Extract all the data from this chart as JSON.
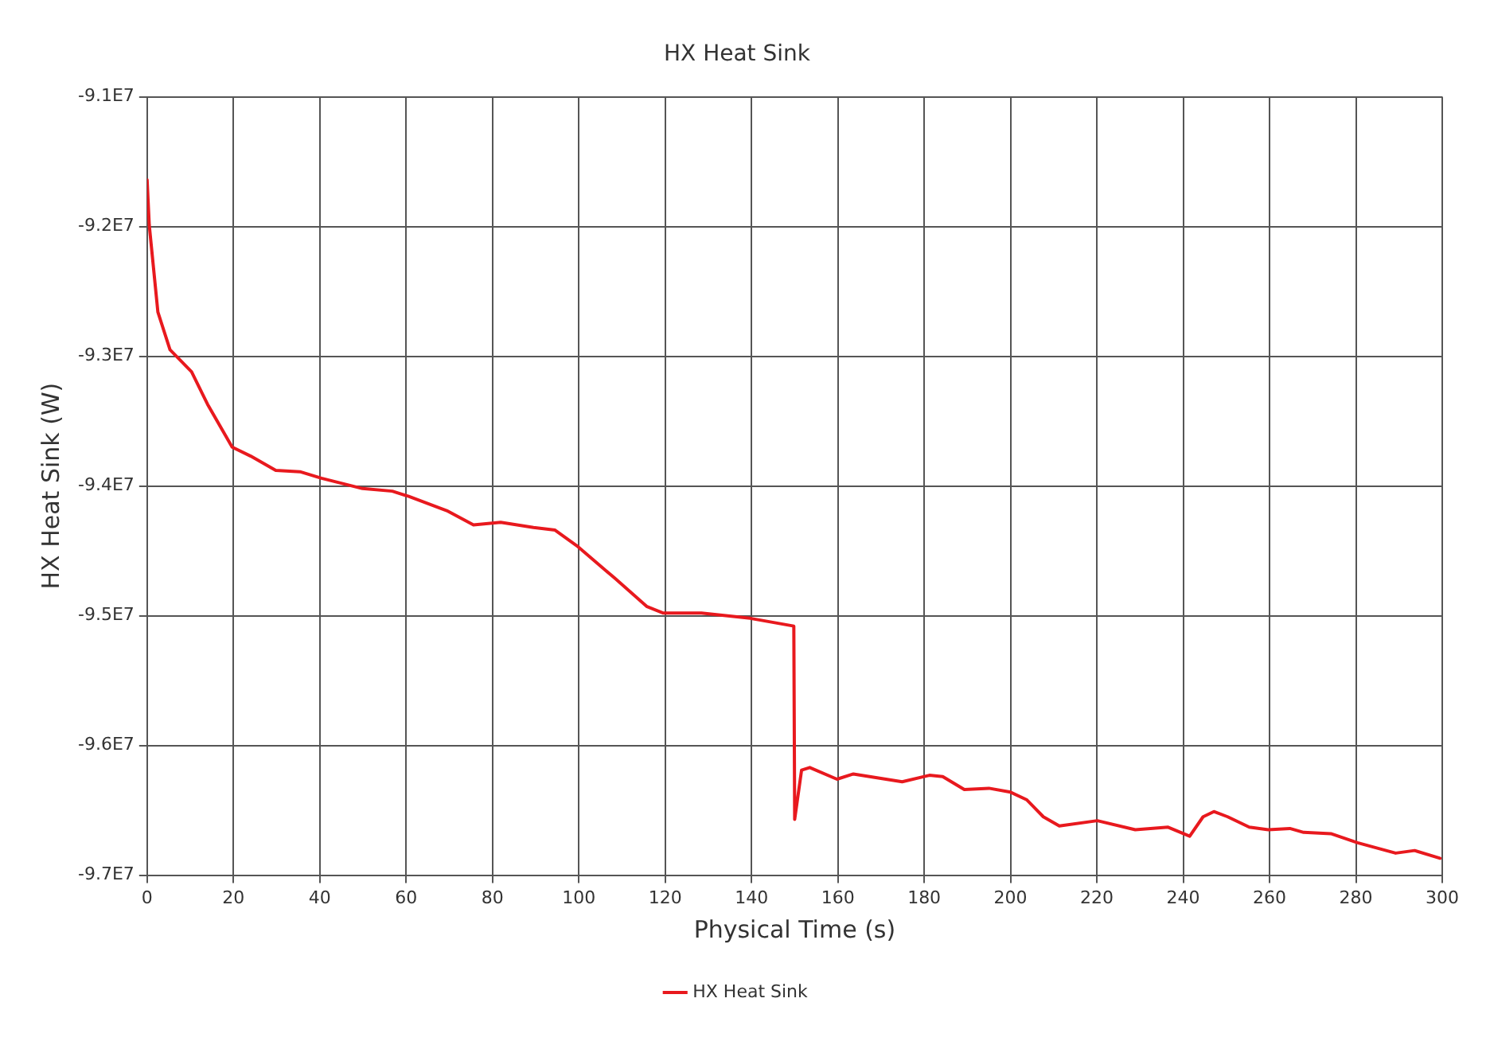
{
  "chart_data": {
    "type": "line",
    "title": "HX Heat Sink",
    "xlabel": "Physical Time (s)",
    "ylabel": "HX Heat Sink (W)",
    "xlim": [
      0,
      300
    ],
    "xticks": [
      0,
      20,
      40,
      60,
      80,
      100,
      120,
      140,
      160,
      180,
      200,
      220,
      240,
      260,
      280,
      300
    ],
    "ylim": [
      -97000000,
      -91000000
    ],
    "yticks": [
      {
        "value": -97000000,
        "label": "-9.7E7"
      },
      {
        "value": -96000000,
        "label": "-9.6E7"
      },
      {
        "value": -95000000,
        "label": "-9.5E7"
      },
      {
        "value": -94000000,
        "label": "-9.4E7"
      },
      {
        "value": -93000000,
        "label": "-9.3E7"
      },
      {
        "value": -92000000,
        "label": "-9.2E7"
      },
      {
        "value": -91000000,
        "label": "-9.1E7"
      }
    ],
    "grid": true,
    "legend": "bottom",
    "marker": "none",
    "line_style": "solid",
    "series": [
      {
        "name": "HX Heat Sink",
        "color": "#e8191e",
        "x": [
          0,
          0.5,
          2.5,
          5.3,
          10.3,
          14,
          19.7,
          24,
          29.8,
          35.4,
          40.4,
          49.9,
          56.8,
          60.6,
          69.4,
          75.6,
          81.9,
          89.5,
          94.5,
          99.5,
          108.3,
          115.8,
          119.6,
          128.4,
          139.7,
          149.8,
          150,
          151.6,
          153.5,
          159.8,
          163.6,
          174.9,
          181.2,
          184.3,
          189.3,
          195,
          200,
          203.8,
          207.6,
          211.3,
          220.1,
          228.9,
          236.5,
          241.5,
          244.6,
          247.1,
          250.3,
          255.3,
          259.7,
          264.7,
          267.9,
          274.2,
          280.4,
          289.2,
          293.6,
          299.5
        ],
        "values": [
          -91640000,
          -91990000,
          -92660000,
          -92950000,
          -93120000,
          -93370000,
          -93700000,
          -93770000,
          -93880000,
          -93890000,
          -93940000,
          -94020000,
          -94040000,
          -94080000,
          -94190000,
          -94300000,
          -94280000,
          -94320000,
          -94340000,
          -94460000,
          -94710000,
          -94930000,
          -94980000,
          -94980000,
          -95020000,
          -95080000,
          -96570000,
          -96190000,
          -96170000,
          -96260000,
          -96220000,
          -96280000,
          -96230000,
          -96240000,
          -96340000,
          -96330000,
          -96360000,
          -96420000,
          -96550000,
          -96620000,
          -96580000,
          -96650000,
          -96630000,
          -96700000,
          -96550000,
          -96510000,
          -96550000,
          -96630000,
          -96650000,
          -96640000,
          -96670000,
          -96680000,
          -96750000,
          -96830000,
          -96810000,
          -96870000
        ]
      }
    ]
  }
}
